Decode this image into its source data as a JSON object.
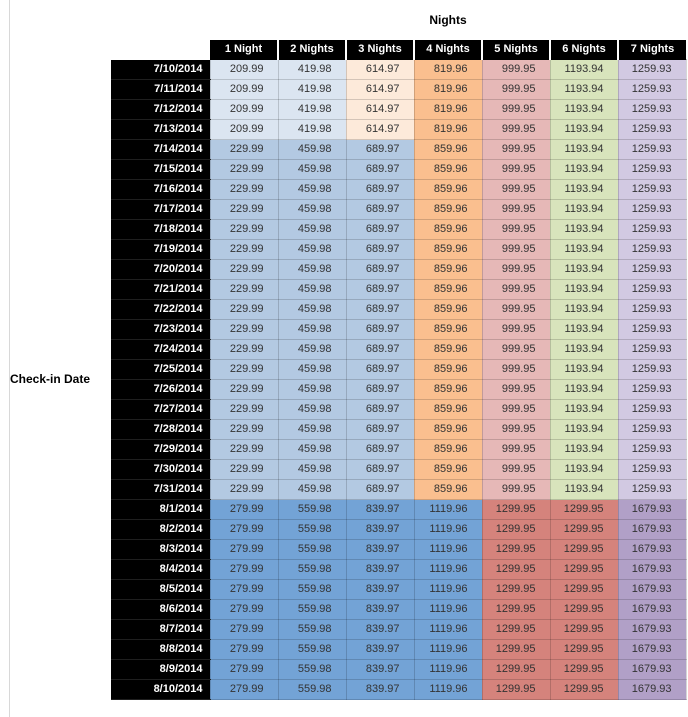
{
  "chart_data": {
    "type": "heatmap",
    "title": "Nights",
    "xlabel": "Nights",
    "ylabel": "Check-in Date",
    "columns": [
      "1 Night",
      "2 Nights",
      "3 Nights",
      "4 Nights",
      "5 Nights",
      "6 Nights",
      "7 Nights"
    ],
    "rows": [
      "7/10/2014",
      "7/11/2014",
      "7/12/2014",
      "7/13/2014",
      "7/14/2014",
      "7/15/2014",
      "7/16/2014",
      "7/17/2014",
      "7/18/2014",
      "7/19/2014",
      "7/20/2014",
      "7/21/2014",
      "7/22/2014",
      "7/23/2014",
      "7/24/2014",
      "7/25/2014",
      "7/26/2014",
      "7/27/2014",
      "7/28/2014",
      "7/29/2014",
      "7/30/2014",
      "7/31/2014",
      "8/1/2014",
      "8/2/2014",
      "8/3/2014",
      "8/4/2014",
      "8/5/2014",
      "8/6/2014",
      "8/7/2014",
      "8/8/2014",
      "8/9/2014",
      "8/10/2014"
    ],
    "values": [
      [
        209.99,
        419.98,
        614.97,
        819.96,
        999.95,
        1193.94,
        1259.93
      ],
      [
        209.99,
        419.98,
        614.97,
        819.96,
        999.95,
        1193.94,
        1259.93
      ],
      [
        209.99,
        419.98,
        614.97,
        819.96,
        999.95,
        1193.94,
        1259.93
      ],
      [
        209.99,
        419.98,
        614.97,
        819.96,
        999.95,
        1193.94,
        1259.93
      ],
      [
        229.99,
        459.98,
        689.97,
        859.96,
        999.95,
        1193.94,
        1259.93
      ],
      [
        229.99,
        459.98,
        689.97,
        859.96,
        999.95,
        1193.94,
        1259.93
      ],
      [
        229.99,
        459.98,
        689.97,
        859.96,
        999.95,
        1193.94,
        1259.93
      ],
      [
        229.99,
        459.98,
        689.97,
        859.96,
        999.95,
        1193.94,
        1259.93
      ],
      [
        229.99,
        459.98,
        689.97,
        859.96,
        999.95,
        1193.94,
        1259.93
      ],
      [
        229.99,
        459.98,
        689.97,
        859.96,
        999.95,
        1193.94,
        1259.93
      ],
      [
        229.99,
        459.98,
        689.97,
        859.96,
        999.95,
        1193.94,
        1259.93
      ],
      [
        229.99,
        459.98,
        689.97,
        859.96,
        999.95,
        1193.94,
        1259.93
      ],
      [
        229.99,
        459.98,
        689.97,
        859.96,
        999.95,
        1193.94,
        1259.93
      ],
      [
        229.99,
        459.98,
        689.97,
        859.96,
        999.95,
        1193.94,
        1259.93
      ],
      [
        229.99,
        459.98,
        689.97,
        859.96,
        999.95,
        1193.94,
        1259.93
      ],
      [
        229.99,
        459.98,
        689.97,
        859.96,
        999.95,
        1193.94,
        1259.93
      ],
      [
        229.99,
        459.98,
        689.97,
        859.96,
        999.95,
        1193.94,
        1259.93
      ],
      [
        229.99,
        459.98,
        689.97,
        859.96,
        999.95,
        1193.94,
        1259.93
      ],
      [
        229.99,
        459.98,
        689.97,
        859.96,
        999.95,
        1193.94,
        1259.93
      ],
      [
        229.99,
        459.98,
        689.97,
        859.96,
        999.95,
        1193.94,
        1259.93
      ],
      [
        229.99,
        459.98,
        689.97,
        859.96,
        999.95,
        1193.94,
        1259.93
      ],
      [
        229.99,
        459.98,
        689.97,
        859.96,
        999.95,
        1193.94,
        1259.93
      ],
      [
        279.99,
        559.98,
        839.97,
        1119.96,
        1299.95,
        1299.95,
        1679.93
      ],
      [
        279.99,
        559.98,
        839.97,
        1119.96,
        1299.95,
        1299.95,
        1679.93
      ],
      [
        279.99,
        559.98,
        839.97,
        1119.96,
        1299.95,
        1299.95,
        1679.93
      ],
      [
        279.99,
        559.98,
        839.97,
        1119.96,
        1299.95,
        1299.95,
        1679.93
      ],
      [
        279.99,
        559.98,
        839.97,
        1119.96,
        1299.95,
        1299.95,
        1679.93
      ],
      [
        279.99,
        559.98,
        839.97,
        1119.96,
        1299.95,
        1299.95,
        1679.93
      ],
      [
        279.99,
        559.98,
        839.97,
        1119.96,
        1299.95,
        1299.95,
        1679.93
      ],
      [
        279.99,
        559.98,
        839.97,
        1119.96,
        1299.95,
        1299.95,
        1679.93
      ],
      [
        279.99,
        559.98,
        839.97,
        1119.96,
        1299.95,
        1299.95,
        1679.93
      ],
      [
        279.99,
        559.98,
        839.97,
        1119.96,
        1299.95,
        1299.95,
        1679.93
      ]
    ]
  },
  "style": {
    "row_bands": [
      "a",
      "a",
      "a",
      "a",
      "b",
      "b",
      "b",
      "b",
      "b",
      "b",
      "b",
      "b",
      "b",
      "b",
      "b",
      "b",
      "b",
      "b",
      "b",
      "b",
      "b",
      "b",
      "c",
      "c",
      "c",
      "c",
      "c",
      "c",
      "c",
      "c",
      "c",
      "c"
    ],
    "band_colors": {
      "a": [
        "#dbe5f1",
        "#dbe5f1",
        "#fdeada",
        "#fabf8f",
        "#e6b8b7",
        "#d8e4bc",
        "#d2c9e2"
      ],
      "b": [
        "#b3c9e2",
        "#b3c9e2",
        "#b3c9e2",
        "#fabf8f",
        "#e6b8b7",
        "#d8e4bc",
        "#d2c9e2"
      ],
      "c": [
        "#73a3d6",
        "#73a3d6",
        "#73a3d6",
        "#73a3d6",
        "#d5837c",
        "#d5837c",
        "#b1a0c7"
      ]
    },
    "header_bg": "#000000",
    "header_text": "#ffffff",
    "value_text": "#333333"
  }
}
